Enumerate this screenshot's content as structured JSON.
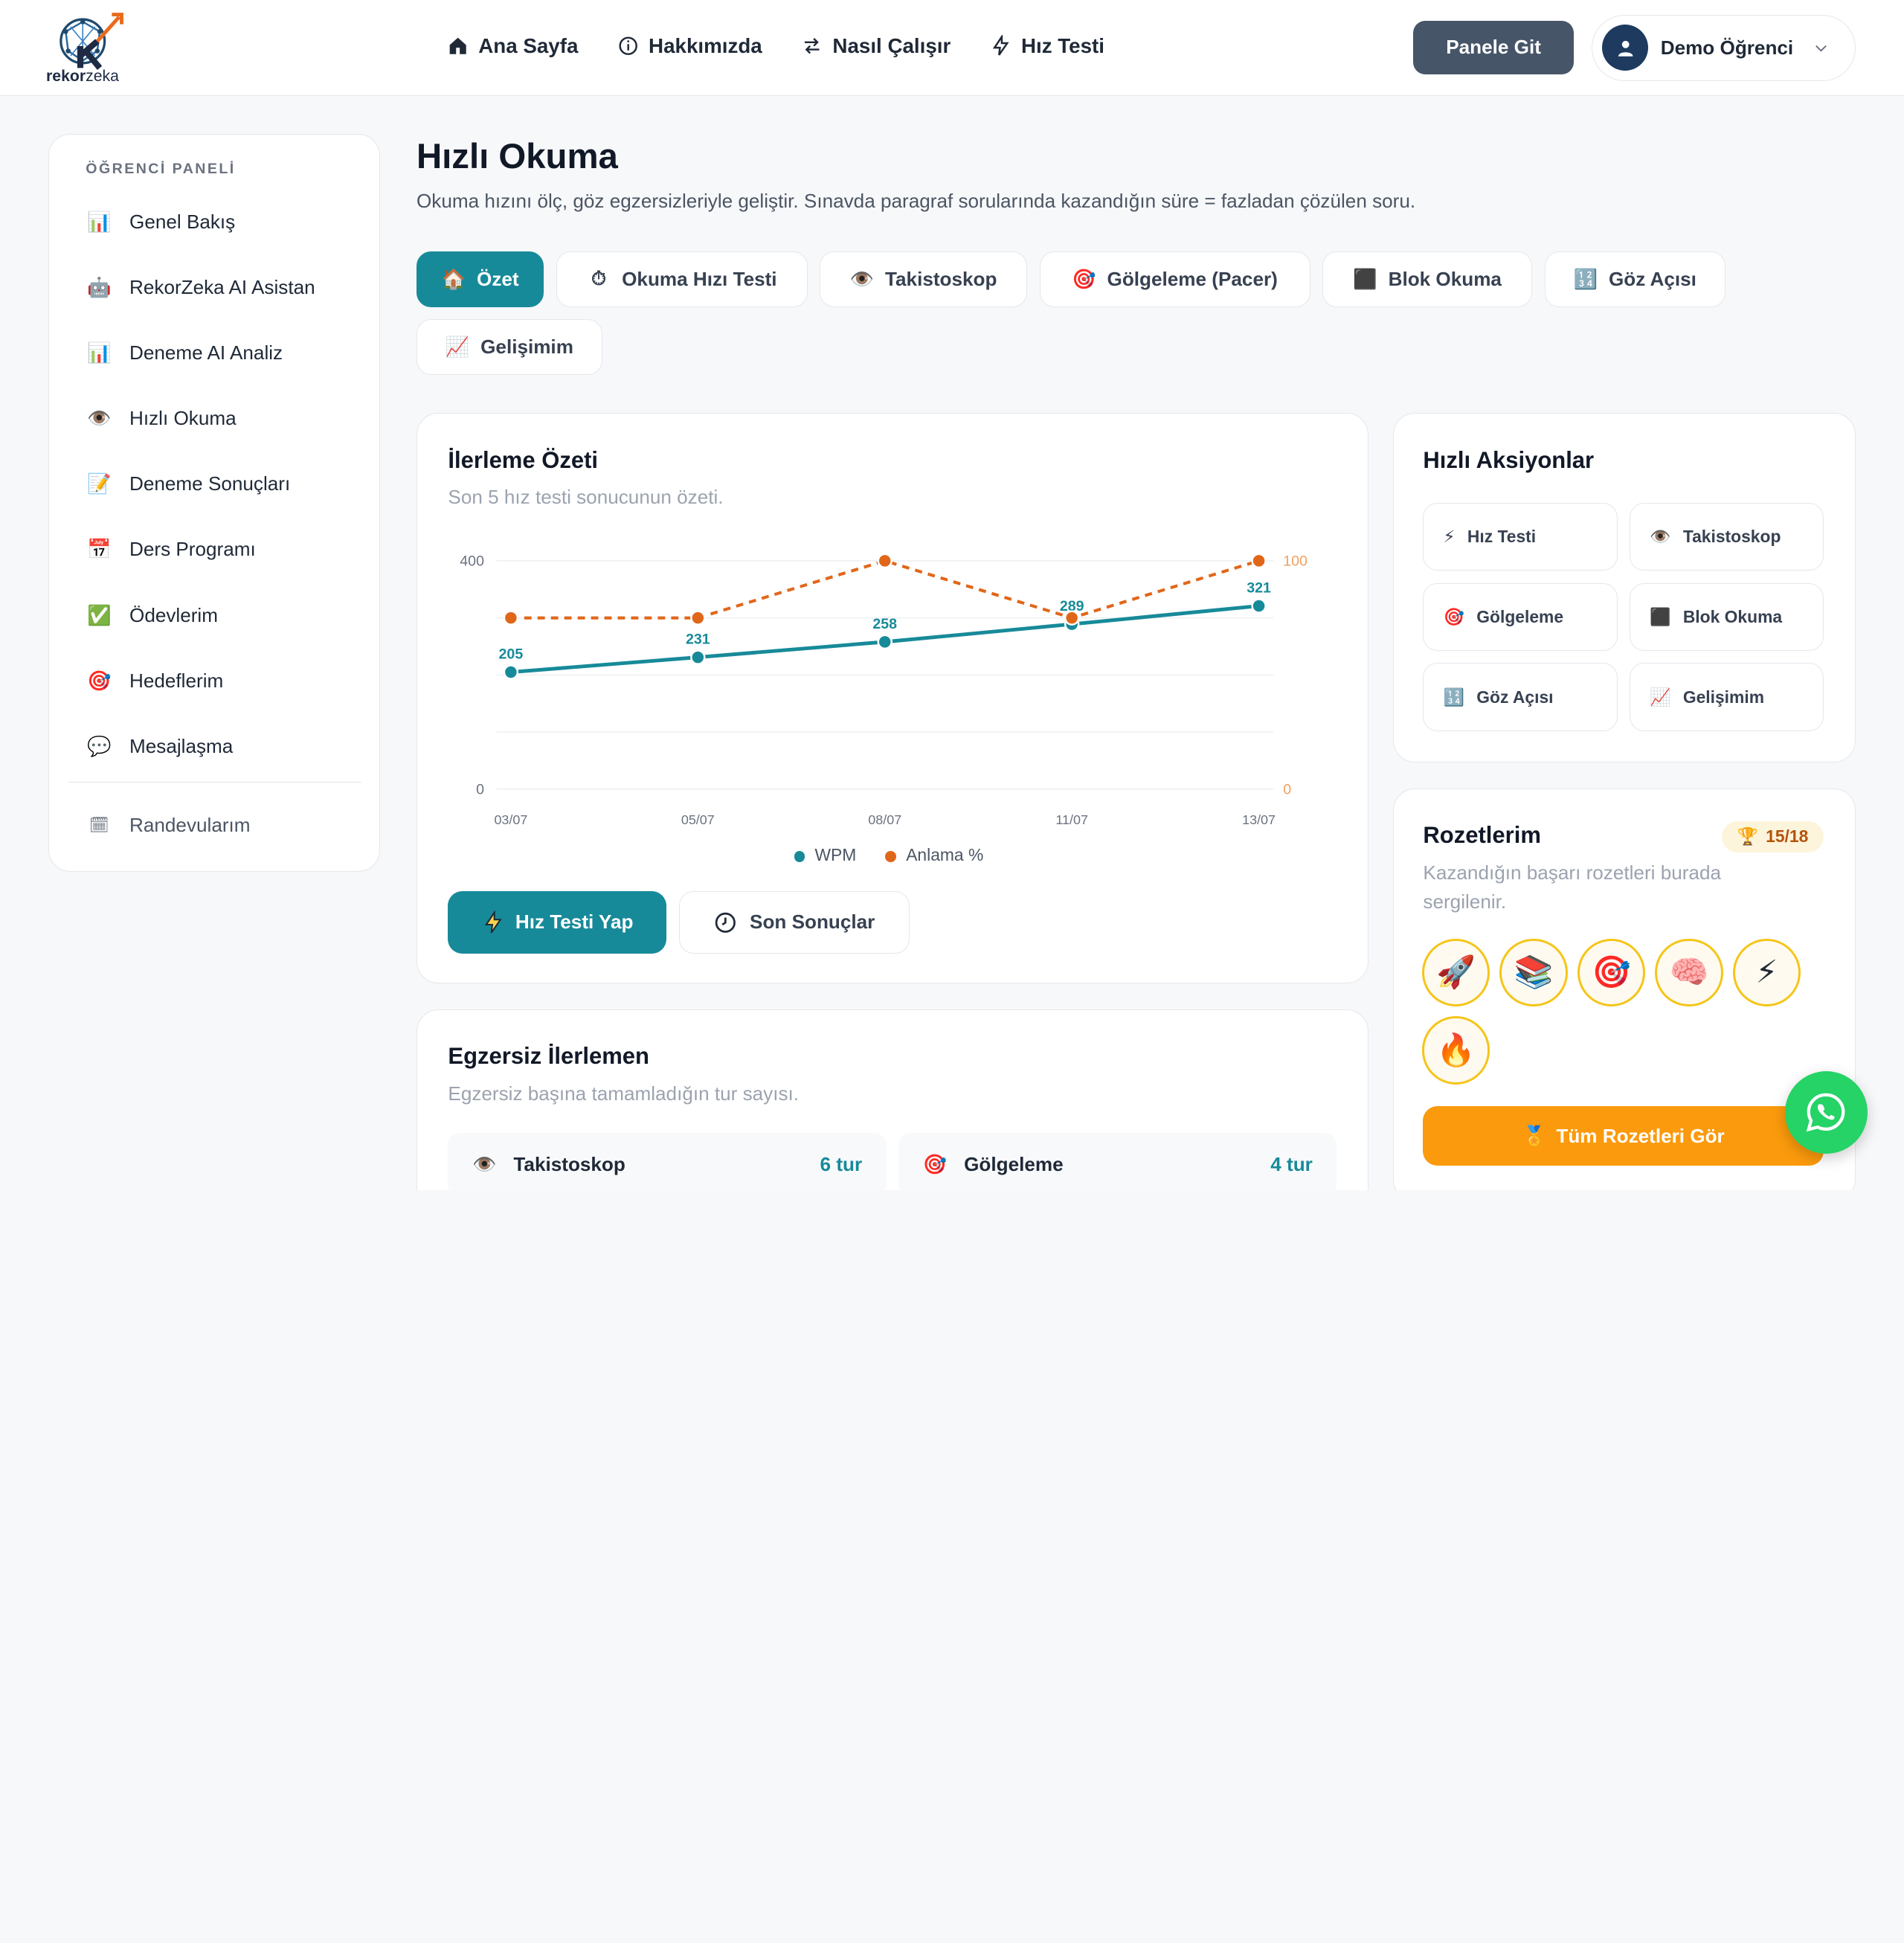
{
  "brand": {
    "name_bold": "rekor",
    "name_light": "zeka"
  },
  "nav": [
    {
      "label": "Ana Sayfa",
      "icon": "home-icon"
    },
    {
      "label": "Hakkımızda",
      "icon": "info-icon"
    },
    {
      "label": "Nasıl Çalışır",
      "icon": "swap-icon"
    },
    {
      "label": "Hız Testi",
      "icon": "bolt-icon"
    }
  ],
  "header": {
    "panel_button": "Panele Git",
    "user_name": "Demo Öğrenci"
  },
  "sidebar": {
    "title": "ÖĞRENCİ PANELİ",
    "items": [
      {
        "label": "Genel Bakış",
        "icon": "📊"
      },
      {
        "label": "RekorZeka AI Asistan",
        "icon": "🤖"
      },
      {
        "label": "Deneme AI Analiz",
        "icon": "📊"
      },
      {
        "label": "Hızlı Okuma",
        "icon": "👁️"
      },
      {
        "label": "Deneme Sonuçları",
        "icon": "📝"
      },
      {
        "label": "Ders Programı",
        "icon": "📅"
      },
      {
        "label": "Ödevlerim",
        "icon": "✅"
      },
      {
        "label": "Hedeflerim",
        "icon": "🎯"
      },
      {
        "label": "Mesajlaşma",
        "icon": "💬"
      }
    ],
    "extra": {
      "label": "Randevularım",
      "icon": "🗓"
    }
  },
  "page": {
    "title": "Hızlı Okuma",
    "subtitle": "Okuma hızını ölç, göz egzersizleriyle geliştir. Sınavda paragraf sorularında kazandığın süre = fazladan çözülen soru."
  },
  "tabs": [
    {
      "label": "Özet",
      "icon": "🏠",
      "active": true
    },
    {
      "label": "Okuma Hızı Testi",
      "icon": "⏱"
    },
    {
      "label": "Takistoskop",
      "icon": "👁️"
    },
    {
      "label": "Gölgeleme (Pacer)",
      "icon": "🎯"
    },
    {
      "label": "Blok Okuma",
      "icon": "⬛"
    },
    {
      "label": "Göz Açısı",
      "icon": "🔢"
    },
    {
      "label": "Gelişimim",
      "icon": "📈"
    }
  ],
  "progress": {
    "title": "İlerleme Özeti",
    "subtitle": "Son 5 hız testi sonucunun özeti.",
    "primary_button": "Hız Testi Yap",
    "secondary_button": "Son Sonuçlar"
  },
  "chart_data": {
    "type": "line",
    "categories": [
      "03/07",
      "05/07",
      "08/07",
      "11/07",
      "13/07"
    ],
    "series": [
      {
        "name": "WPM",
        "values": [
          205,
          231,
          258,
          289,
          321
        ],
        "color": "#178a99",
        "axis": "left",
        "labels": true
      },
      {
        "name": "Anlama %",
        "values": [
          75,
          75,
          100,
          75,
          100
        ],
        "color": "#e0671a",
        "axis": "right",
        "dashed": true
      }
    ],
    "y_left": {
      "min": 0,
      "max": 400,
      "ticks": [
        "0",
        "400"
      ]
    },
    "y_right": {
      "min": 0,
      "max": 100,
      "ticks": [
        "0",
        "100"
      ]
    },
    "grid": true,
    "legend": "bottom"
  },
  "quick_actions": {
    "title": "Hızlı Aksiyonlar",
    "items": [
      {
        "label": "Hız Testi",
        "icon": "⚡"
      },
      {
        "label": "Takistoskop",
        "icon": "👁️"
      },
      {
        "label": "Gölgeleme",
        "icon": "🎯"
      },
      {
        "label": "Blok Okuma",
        "icon": "⬛"
      },
      {
        "label": "Göz Açısı",
        "icon": "🔢"
      },
      {
        "label": "Gelişimim",
        "icon": "📈"
      }
    ]
  },
  "badges": {
    "title": "Rozetlerim",
    "count": "15/18",
    "subtitle_line1": "Kazandığın başarı rozetleri burada",
    "subtitle_line2": "sergilenir.",
    "items": [
      "🚀",
      "📚",
      "🎯",
      "🧠",
      "⚡",
      "🔥"
    ],
    "button": "Tüm Rozetleri Gör"
  },
  "exercises": {
    "title": "Egzersiz İlerlemen",
    "subtitle": "Egzersiz başına tamamladığın tur sayısı.",
    "items": [
      {
        "label": "Takistoskop",
        "icon": "👁️",
        "count": "6 tur"
      },
      {
        "label": "Gölgeleme",
        "icon": "🎯",
        "count": "4 tur"
      }
    ]
  }
}
